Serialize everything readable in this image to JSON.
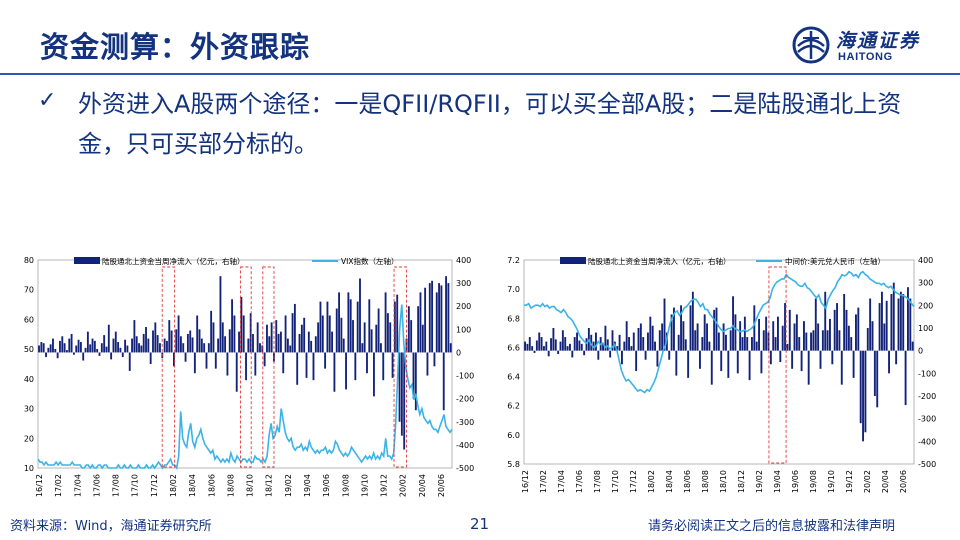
{
  "header": {
    "title": "资金测算：外资跟踪"
  },
  "logo": {
    "cn": "海通证券",
    "en": "HAITONG"
  },
  "bullet": {
    "text": "外资进入A股两个途径：一是QFII/RQFII，可以买全部A股；二是陆股通北上资金，只可买部分标的。"
  },
  "footer": {
    "source": "资料来源：Wind，海通证券研究所",
    "page": "21",
    "disclaimer": "请务必阅读正文之后的信息披露和法律声明"
  },
  "colors": {
    "bar": "#13237a",
    "line": "#3ab4e6",
    "highlight": "#e23b3b",
    "title": "#13337f"
  },
  "chart_data": [
    {
      "type": "bar+line",
      "legend": [
        "陆股通北上资金当周净流入（亿元，右轴）",
        "VIX指数（左轴）"
      ],
      "left_axis": {
        "ticks": [
          80,
          70,
          60,
          50,
          40,
          30,
          20,
          10
        ],
        "range": [
          10,
          80
        ]
      },
      "right_axis": {
        "ticks": [
          400,
          300,
          200,
          100,
          0,
          -100,
          -200,
          -300,
          -400,
          -500
        ],
        "range": [
          -500,
          400
        ]
      },
      "x_ticks": [
        "16/12",
        "17/02",
        "17/04",
        "17/06",
        "17/08",
        "17/10",
        "17/12",
        "18/02",
        "18/04",
        "18/06",
        "18/08",
        "18/10",
        "18/12",
        "19/02",
        "19/04",
        "19/06",
        "19/08",
        "19/10",
        "19/12",
        "20/02",
        "20/04",
        "20/06"
      ],
      "bars_weekly": [
        30,
        45,
        40,
        -20,
        20,
        35,
        60,
        15,
        -25,
        50,
        70,
        40,
        10,
        60,
        80,
        -10,
        30,
        55,
        45,
        -35,
        20,
        90,
        35,
        60,
        50,
        15,
        -15,
        40,
        75,
        25,
        120,
        -30,
        60,
        90,
        45,
        20,
        -20,
        55,
        30,
        -80,
        60,
        140,
        70,
        40,
        30,
        80,
        110,
        60,
        -50,
        95,
        130,
        75,
        40,
        -25,
        60,
        50,
        140,
        95,
        -60,
        100,
        160,
        70,
        40,
        -40,
        80,
        95,
        65,
        -90,
        160,
        100,
        60,
        40,
        -70,
        40,
        180,
        130,
        -70,
        60,
        330,
        130,
        70,
        -100,
        100,
        230,
        160,
        -170,
        90,
        240,
        160,
        -120,
        60,
        170,
        80,
        -100,
        130,
        40,
        30,
        -60,
        120,
        70,
        130,
        -40,
        140,
        80,
        90,
        -90,
        160,
        60,
        30,
        170,
        210,
        -140,
        80,
        120,
        150,
        -110,
        90,
        50,
        -120,
        70,
        130,
        220,
        160,
        -70,
        220,
        160,
        90,
        -170,
        190,
        260,
        150,
        60,
        -160,
        260,
        230,
        140,
        -120,
        220,
        320,
        40,
        130,
        -90,
        230,
        100,
        -190,
        120,
        190,
        40,
        -120,
        260,
        170,
        130,
        -110,
        220,
        250,
        -300,
        -360,
        -420,
        60,
        200,
        140,
        -200,
        -250,
        200,
        260,
        120,
        280,
        -100,
        300,
        310,
        -60,
        260,
        300,
        290,
        -250,
        330,
        300,
        40
      ],
      "vix_weekly": [
        13,
        12,
        12,
        11,
        12,
        11,
        11,
        11,
        11,
        12,
        11,
        12,
        11,
        11,
        11,
        11,
        11,
        12,
        11,
        11,
        11,
        11,
        10,
        10,
        11,
        11,
        10,
        11,
        10,
        10,
        11,
        11,
        10,
        11,
        11,
        10,
        10,
        10,
        10,
        10,
        11,
        10,
        10,
        11,
        10,
        10,
        11,
        10,
        10,
        10,
        11,
        10,
        10,
        10,
        11,
        10,
        10,
        11,
        10,
        11,
        12,
        11,
        10,
        11,
        11,
        12,
        13,
        11,
        11,
        10,
        14,
        29,
        20,
        18,
        17,
        22,
        25,
        19,
        17,
        20,
        21,
        23,
        20,
        18,
        17,
        16,
        15,
        16,
        13,
        14,
        13,
        12,
        13,
        12,
        13,
        12,
        15,
        13,
        12,
        14,
        13,
        12,
        13,
        13,
        12,
        13,
        12,
        12,
        14,
        13,
        13,
        12,
        13,
        12,
        14,
        21,
        25,
        20,
        21,
        24,
        22,
        30,
        26,
        22,
        20,
        19,
        20,
        17,
        16,
        17,
        17,
        18,
        16,
        17,
        16,
        19,
        17,
        16,
        15,
        16,
        15,
        16,
        16,
        17,
        15,
        16,
        15,
        16,
        19,
        18,
        16,
        15,
        14,
        15,
        14,
        15,
        17,
        16,
        15,
        14,
        13,
        12,
        13,
        14,
        13,
        14,
        13,
        15,
        13,
        14,
        13,
        15,
        14,
        20,
        14,
        14,
        13,
        15,
        25,
        41,
        57,
        65,
        52,
        44,
        40,
        37,
        38,
        33,
        35,
        31,
        28,
        30,
        27,
        26,
        25,
        26,
        24,
        23,
        23,
        22,
        24,
        26,
        28,
        24,
        23,
        22,
        23
      ]
    },
    {
      "type": "bar+line",
      "legend": [
        "陆股通北上资金当周净流入（亿元，右轴）",
        "中间价:美元兑人民币（左轴）"
      ],
      "left_axis": {
        "ticks": [
          7.2,
          7.0,
          6.8,
          6.6,
          6.4,
          6.2,
          6.0,
          5.8
        ],
        "range": [
          5.8,
          7.2
        ]
      },
      "right_axis": {
        "ticks": [
          400,
          300,
          200,
          100,
          0,
          -100,
          -200,
          -300,
          -400,
          -500
        ],
        "range": [
          -500,
          400
        ]
      },
      "x_ticks": [
        "16/12",
        "17/02",
        "17/04",
        "17/06",
        "17/08",
        "17/10",
        "17/12",
        "18/02",
        "18/04",
        "18/06",
        "18/08",
        "18/10",
        "18/12",
        "19/02",
        "19/04",
        "19/06",
        "19/08",
        "19/10",
        "19/12",
        "20/02",
        "20/04",
        "20/06"
      ],
      "cny_weekly": [
        6.89,
        6.89,
        6.9,
        6.87,
        6.88,
        6.89,
        6.89,
        6.88,
        6.9,
        6.88,
        6.89,
        6.87,
        6.88,
        6.88,
        6.86,
        6.85,
        6.84,
        6.86,
        6.84,
        6.81,
        6.8,
        6.78,
        6.75,
        6.72,
        6.68,
        6.66,
        6.64,
        6.63,
        6.65,
        6.62,
        6.6,
        6.61,
        6.64,
        6.62,
        6.63,
        6.6,
        6.61,
        6.59,
        6.6,
        6.62,
        6.58,
        6.51,
        6.44,
        6.4,
        6.37,
        6.38,
        6.36,
        6.34,
        6.32,
        6.3,
        6.31,
        6.3,
        6.29,
        6.31,
        6.3,
        6.33,
        6.36,
        6.4,
        6.46,
        6.52,
        6.58,
        6.62,
        6.7,
        6.77,
        6.81,
        6.84,
        6.85,
        6.82,
        6.84,
        6.87,
        6.88,
        6.9,
        6.92,
        6.93,
        6.93,
        6.91,
        6.88,
        6.9,
        6.86,
        6.86,
        6.83,
        6.81,
        6.79,
        6.77,
        6.74,
        6.72,
        6.71,
        6.72,
        6.73,
        6.73,
        6.75,
        6.73,
        6.72,
        6.71,
        6.71,
        6.72,
        6.71,
        6.72,
        6.73,
        6.75,
        6.79,
        6.83,
        6.86,
        6.89,
        6.9,
        6.91,
        6.94,
        7.0,
        7.03,
        7.05,
        7.06,
        7.07,
        7.07,
        7.1,
        7.08,
        7.07,
        7.06,
        7.05,
        7.03,
        7.02,
        7.02,
        7.04,
        7.01,
        7.0,
        6.98,
        6.96,
        6.94,
        6.96,
        6.91,
        6.89,
        6.87,
        6.93,
        6.96,
        6.99,
        7.01,
        7.05,
        7.07,
        7.1,
        7.09,
        7.1,
        7.12,
        7.11,
        7.09,
        7.1,
        7.08,
        7.11,
        7.12,
        7.1,
        7.09,
        7.07,
        7.06,
        7.05,
        7.04,
        7.04,
        7.03,
        7.04,
        7.02,
        7.01,
        7.02,
        7.0,
        6.98,
        6.97,
        6.96,
        6.96,
        6.95,
        6.94,
        6.92,
        6.9,
        6.88
      ],
      "bars_weekly": [
        40,
        30,
        60,
        20,
        -10,
        45,
        80,
        60,
        20,
        40,
        -25,
        55,
        100,
        50,
        -15,
        40,
        90,
        60,
        20,
        30,
        -30,
        60,
        80,
        45,
        30,
        -20,
        55,
        100,
        70,
        40,
        80,
        -40,
        60,
        30,
        110,
        50,
        -30,
        90,
        40,
        20,
        70,
        -60,
        40,
        130,
        60,
        20,
        80,
        -90,
        100,
        120,
        60,
        -40,
        80,
        150,
        110,
        40,
        -70,
        90,
        120,
        230,
        80,
        -40,
        160,
        190,
        -110,
        70,
        200,
        130,
        50,
        -120,
        200,
        260,
        90,
        120,
        -80,
        60,
        160,
        120,
        40,
        -150,
        180,
        190,
        80,
        -90,
        120,
        70,
        -120,
        90,
        240,
        160,
        -100,
        130,
        60,
        150,
        60,
        -130,
        60,
        200,
        40,
        140,
        -100,
        90,
        150,
        80,
        -60,
        130,
        60,
        150,
        -50,
        110,
        210,
        30,
        180,
        -80,
        120,
        160,
        60,
        -90,
        130,
        80,
        -150,
        80,
        90,
        230,
        120,
        -80,
        90,
        260,
        90,
        140,
        -60,
        180,
        210,
        90,
        -150,
        250,
        180,
        110,
        60,
        -120,
        160,
        190,
        -320,
        -400,
        -360,
        100,
        230,
        130,
        -200,
        -250,
        210,
        260,
        120,
        220,
        -100,
        250,
        300,
        -60,
        230,
        260,
        250,
        -240,
        280,
        230,
        40
      ]
    }
  ]
}
